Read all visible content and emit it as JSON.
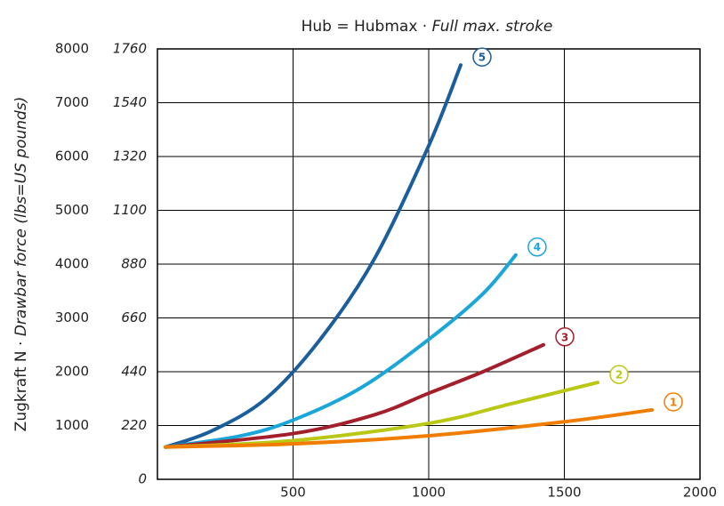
{
  "chart_data": {
    "type": "line",
    "title": {
      "plain": "Hub = Hubmax ·",
      "italic": "Full max. stroke"
    },
    "y_label": {
      "plain": "Zugkraft  N ·",
      "italic": "Drawbar force (lbs=US pounds)"
    },
    "xlim": [
      0,
      2000
    ],
    "xticks": [
      500,
      1000,
      1500,
      2000
    ],
    "ylim": [
      0,
      8000
    ],
    "yticks": [
      1000,
      2000,
      3000,
      4000,
      5000,
      6000,
      7000,
      8000
    ],
    "y2lim": [
      0,
      1760
    ],
    "y2ticks": [
      0,
      220,
      440,
      660,
      880,
      1100,
      1320,
      1540,
      1760
    ],
    "grid": true,
    "series": [
      {
        "name": "5",
        "color": "#1b5e9e",
        "x": [
          30,
          200,
          400,
          600,
          800,
          1000,
          1118
        ],
        "values": [
          600,
          900,
          1500,
          2600,
          4100,
          6200,
          7700
        ]
      },
      {
        "name": "4",
        "color": "#1aa6d9",
        "x": [
          30,
          300,
          500,
          750,
          1000,
          1200,
          1321
        ],
        "values": [
          600,
          800,
          1100,
          1700,
          2600,
          3450,
          4170
        ]
      },
      {
        "name": "3",
        "color": "#a21f2b",
        "x": [
          30,
          500,
          800,
          1000,
          1200,
          1423
        ],
        "values": [
          600,
          850,
          1200,
          1600,
          2000,
          2500
        ]
      },
      {
        "name": "2",
        "color": "#b9c815",
        "x": [
          30,
          500,
          1000,
          1300,
          1623
        ],
        "values": [
          600,
          720,
          1040,
          1400,
          1800
        ]
      },
      {
        "name": "1",
        "color": "#f07d00",
        "x": [
          30,
          500,
          1000,
          1500,
          1823
        ],
        "values": [
          600,
          660,
          810,
          1070,
          1290
        ]
      }
    ]
  }
}
